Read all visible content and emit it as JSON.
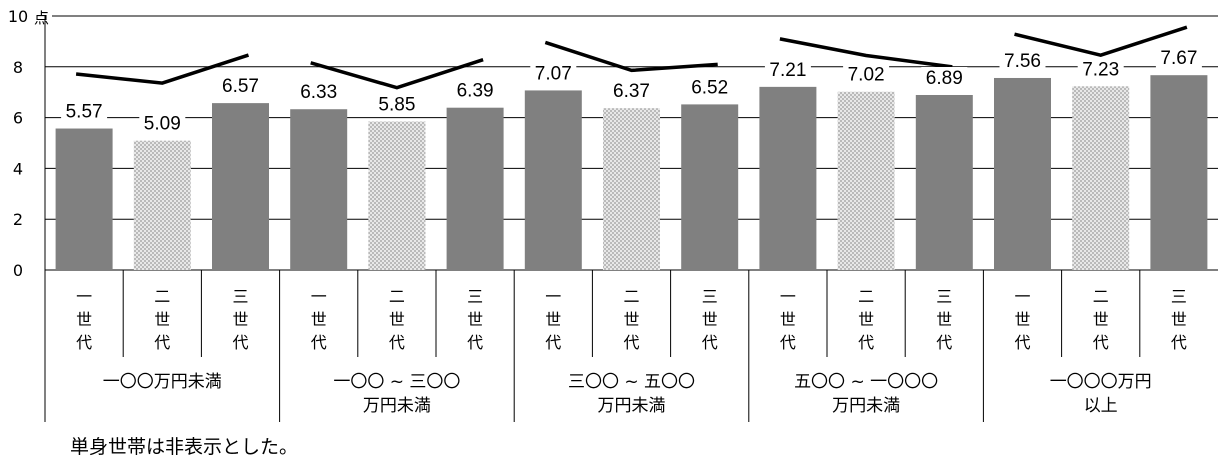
{
  "chart_data": {
    "type": "bar",
    "y_unit_label": "点",
    "ylim": [
      0,
      10
    ],
    "y_ticks": [
      0,
      2,
      4,
      6,
      8,
      10
    ],
    "grid": true,
    "legend": "none",
    "generation_labels": [
      "一\n世\n代",
      "二\n世\n代",
      "三\n世\n代"
    ],
    "groups": [
      {
        "label": "一〇〇万円未満",
        "values": [
          5.57,
          5.09,
          6.57
        ]
      },
      {
        "label": "一〇〇 ~ 三〇〇\n万円未満",
        "values": [
          6.33,
          5.85,
          6.39
        ]
      },
      {
        "label": "三〇〇 ~ 五〇〇\n万円未満",
        "values": [
          7.07,
          6.37,
          6.52
        ]
      },
      {
        "label": "五〇〇 ~ 一〇〇〇\n万円未満",
        "values": [
          7.21,
          7.02,
          6.89
        ]
      },
      {
        "label": "一〇〇〇万円\n以上",
        "values": [
          7.56,
          7.23,
          7.67
        ]
      }
    ],
    "colors": {
      "solid_bar": "#808080",
      "dotted_bar": "#cfcfcf",
      "line": "#000000",
      "grid": "#000000"
    }
  },
  "note": "単身世帯は非表示とした。"
}
